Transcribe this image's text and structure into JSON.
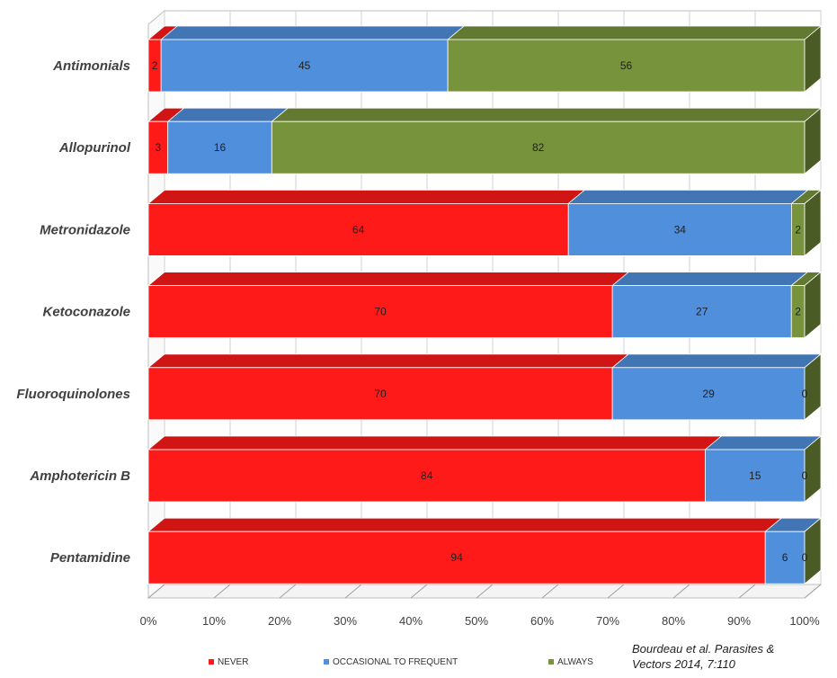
{
  "chart_data": {
    "type": "bar",
    "orientation": "horizontal",
    "stacked": "percent",
    "categories": [
      "Antimonials",
      "Allopurinol",
      "Metronidazole",
      "Ketoconazole",
      "Fluoroquinolones",
      "Amphotericin B",
      "Pentamidine"
    ],
    "series": [
      {
        "name": "NEVER",
        "color": "#ff1a1a",
        "values": [
          2,
          3,
          64,
          70,
          70,
          84,
          94
        ]
      },
      {
        "name": "OCCASIONAL TO FREQUENT",
        "color": "#4f8fdb",
        "values": [
          45,
          16,
          34,
          27,
          29,
          15,
          6
        ]
      },
      {
        "name": "ALWAYS",
        "color": "#77933c",
        "values": [
          56,
          82,
          2,
          2,
          0,
          0,
          0
        ]
      }
    ],
    "xticks": [
      "0%",
      "10%",
      "20%",
      "30%",
      "40%",
      "50%",
      "60%",
      "70%",
      "80%",
      "90%",
      "100%"
    ],
    "xlim": [
      0,
      100
    ],
    "legend_position": "bottom",
    "style": "3d",
    "title": "",
    "xlabel": "",
    "ylabel": ""
  },
  "source_note": {
    "line1": "Bourdeau et al. Parasites &",
    "line2": "Vectors 2014, 7:110"
  }
}
